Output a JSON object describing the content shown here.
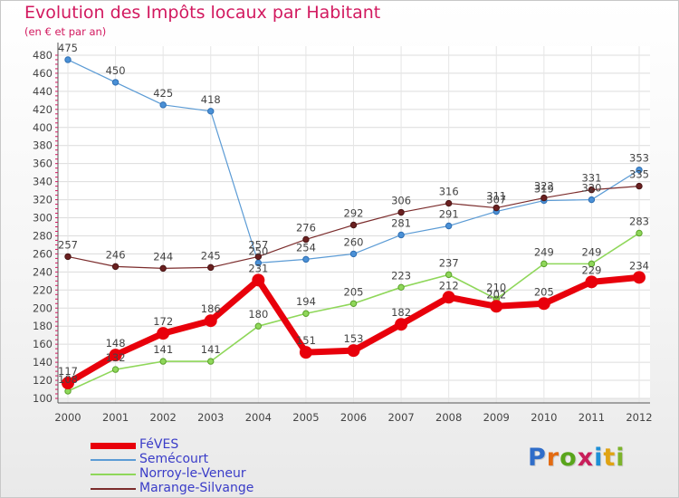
{
  "title": "Evolution des Impôts locaux par Habitant",
  "subtitle": "(en € et par an)",
  "logo": {
    "text": "Proxiti",
    "letters": [
      "P",
      "r",
      "o",
      "x",
      "i",
      "t",
      "i"
    ],
    "colors": [
      "#2f6dc9",
      "#e36b12",
      "#59a51b",
      "#c81e5a",
      "#1d8fd6",
      "#e0a313",
      "#7cb32a"
    ]
  },
  "chart_data": {
    "type": "line",
    "title": "Evolution des Impôts locaux par Habitant",
    "subtitle": "(en € et par an)",
    "xlabel": "",
    "ylabel": "",
    "x": [
      "2000",
      "2001",
      "2002",
      "2003",
      "2004",
      "2005",
      "2006",
      "2007",
      "2008",
      "2009",
      "2010",
      "2011",
      "2012"
    ],
    "ylim": [
      100,
      480
    ],
    "yticks": [
      100,
      120,
      140,
      160,
      180,
      200,
      220,
      240,
      260,
      280,
      300,
      320,
      340,
      360,
      380,
      400,
      420,
      440,
      460,
      480
    ],
    "grid": true,
    "legend_position": "bottom-left",
    "series": [
      {
        "name": "FéVES",
        "color": "#e8000b",
        "values": [
          117,
          148,
          172,
          186,
          231,
          151,
          153,
          182,
          212,
          202,
          205,
          229,
          234
        ]
      },
      {
        "name": "Semécourt",
        "color": "#5b9bd5",
        "values": [
          475,
          450,
          425,
          418,
          250,
          254,
          260,
          281,
          291,
          307,
          319,
          320,
          353
        ]
      },
      {
        "name": "Norroy-le-Veneur",
        "color": "#8fd75a",
        "values": [
          108,
          132,
          141,
          141,
          180,
          194,
          205,
          223,
          237,
          210,
          249,
          249,
          283
        ]
      },
      {
        "name": "Marange-Silvange",
        "color": "#7b2c2c",
        "values": [
          257,
          246,
          244,
          245,
          257,
          276,
          292,
          306,
          316,
          311,
          322,
          331,
          335
        ]
      }
    ]
  }
}
